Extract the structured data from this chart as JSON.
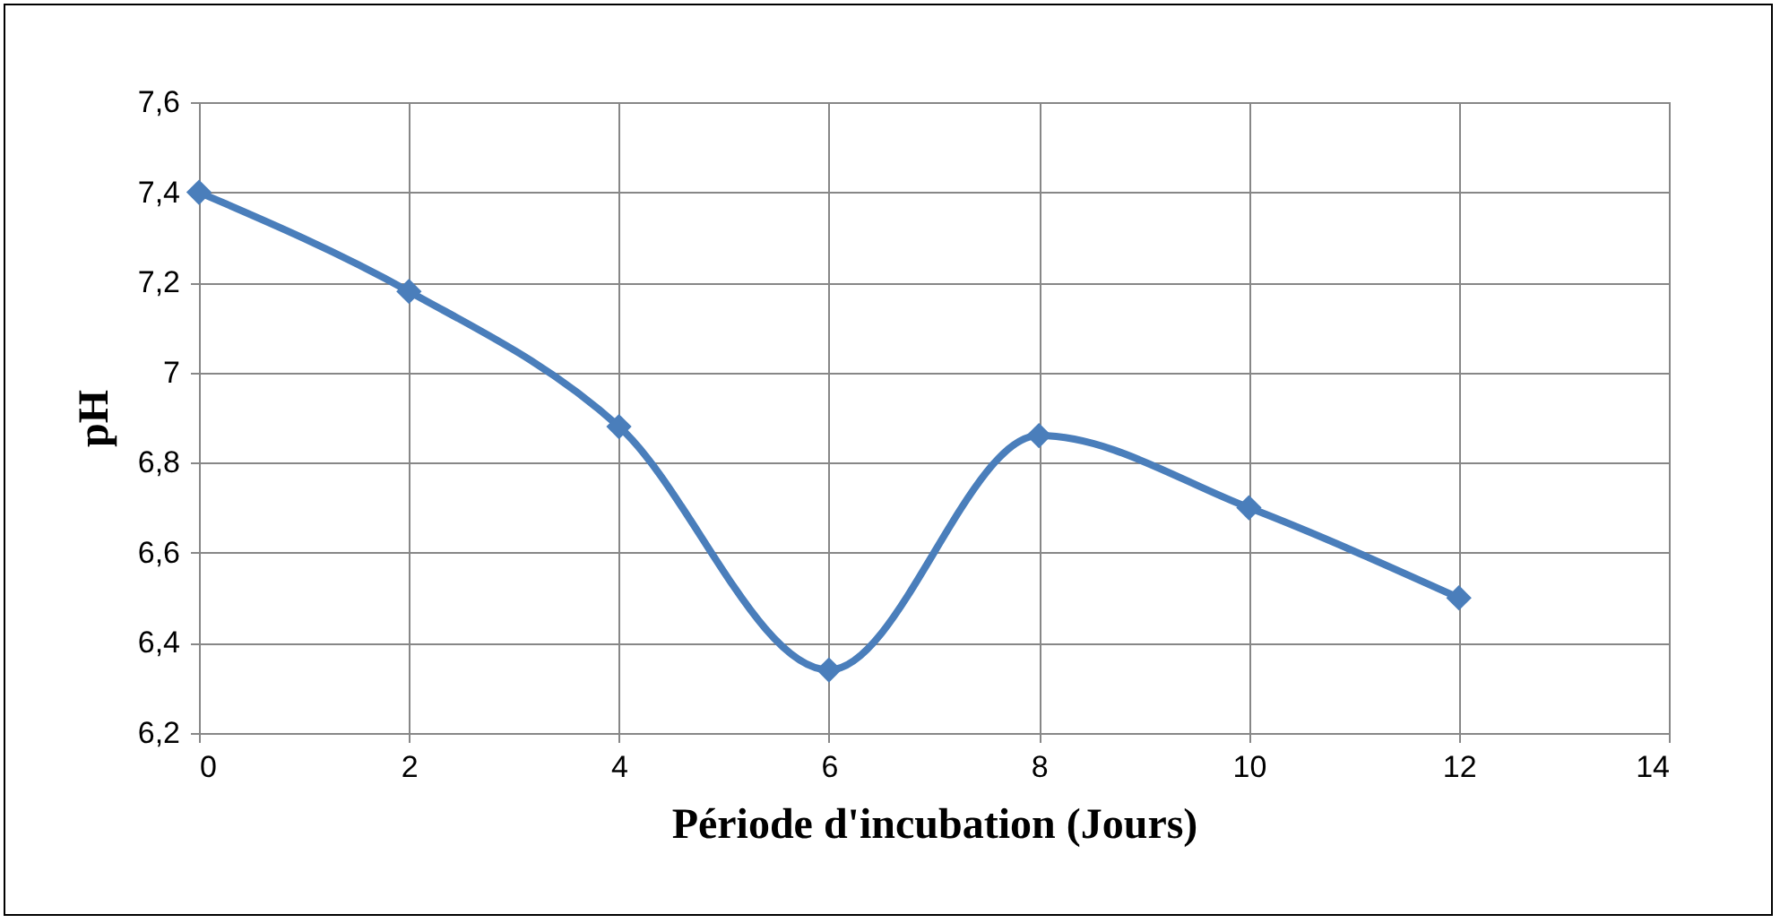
{
  "chart_data": {
    "type": "line",
    "xlabel": "Période d'incubation (Jours)",
    "ylabel": "pH",
    "x": [
      0,
      2,
      4,
      6,
      8,
      10,
      12
    ],
    "series": [
      {
        "color": "#4a7ebb",
        "values": [
          7.4,
          7.18,
          6.88,
          6.34,
          6.86,
          6.7,
          6.5
        ]
      }
    ],
    "xlim": [
      0,
      14
    ],
    "xticks": [
      0,
      2,
      4,
      6,
      8,
      10,
      12,
      14
    ],
    "ylim": [
      6.2,
      7.6
    ],
    "yticks": [
      {
        "value": 6.2,
        "label": "6,2"
      },
      {
        "value": 6.4,
        "label": "6,4"
      },
      {
        "value": 6.6,
        "label": "6,6"
      },
      {
        "value": 6.8,
        "label": "6,8"
      },
      7,
      {
        "value": 7.2,
        "label": "7,2"
      },
      {
        "value": 7.4,
        "label": "7,4"
      },
      {
        "value": 7.6,
        "label": "7,6"
      }
    ],
    "grid": true,
    "marker": "diamond",
    "line_style": "solid",
    "legend": false
  }
}
